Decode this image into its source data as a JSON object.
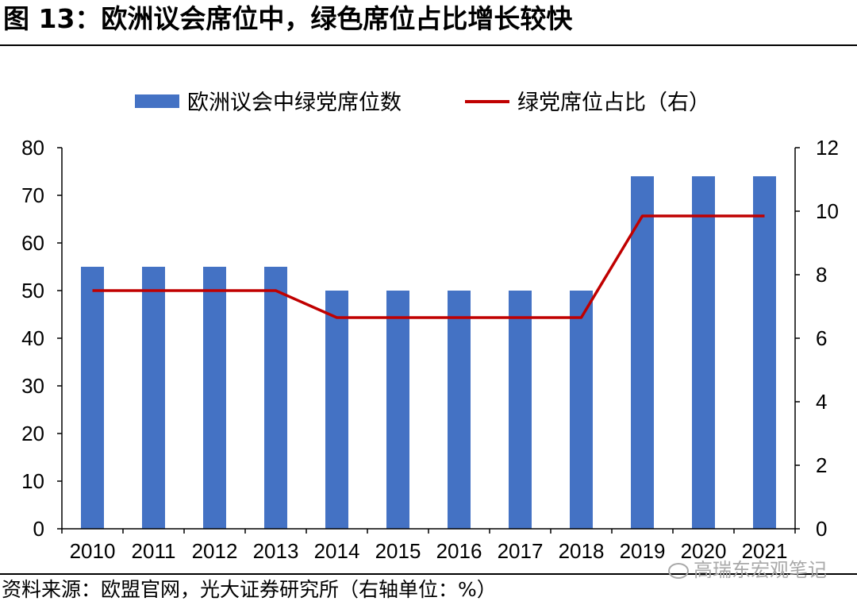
{
  "figure": {
    "title": "图 13：欧洲议会席位中，绿色席位占比增长较快",
    "source": "资料来源：欧盟官网，光大证券研究所（右轴单位：%）",
    "watermark": "高瑞东宏观笔记"
  },
  "chart_data": {
    "type": "bar",
    "categories": [
      "2010",
      "2011",
      "2012",
      "2013",
      "2014",
      "2015",
      "2016",
      "2017",
      "2018",
      "2019",
      "2020",
      "2021"
    ],
    "series": [
      {
        "name": "欧洲议会中绿党席位数",
        "type": "bar",
        "axis": "left",
        "color": "#4472c4",
        "values": [
          55,
          55,
          55,
          55,
          50,
          50,
          50,
          50,
          50,
          74,
          74,
          74
        ]
      },
      {
        "name": "绿党席位占比（右）",
        "type": "line",
        "axis": "right",
        "color": "#c00000",
        "values": [
          7.5,
          7.5,
          7.5,
          7.5,
          6.65,
          6.65,
          6.65,
          6.65,
          6.65,
          9.85,
          9.85,
          9.85
        ]
      }
    ],
    "y_left": {
      "min": 0,
      "max": 80,
      "ticks": [
        0,
        10,
        20,
        30,
        40,
        50,
        60,
        70,
        80
      ]
    },
    "y_right": {
      "min": 0,
      "max": 12,
      "ticks": [
        0,
        2,
        4,
        6,
        8,
        10,
        12
      ]
    },
    "legend": "top-center",
    "grid": false
  }
}
